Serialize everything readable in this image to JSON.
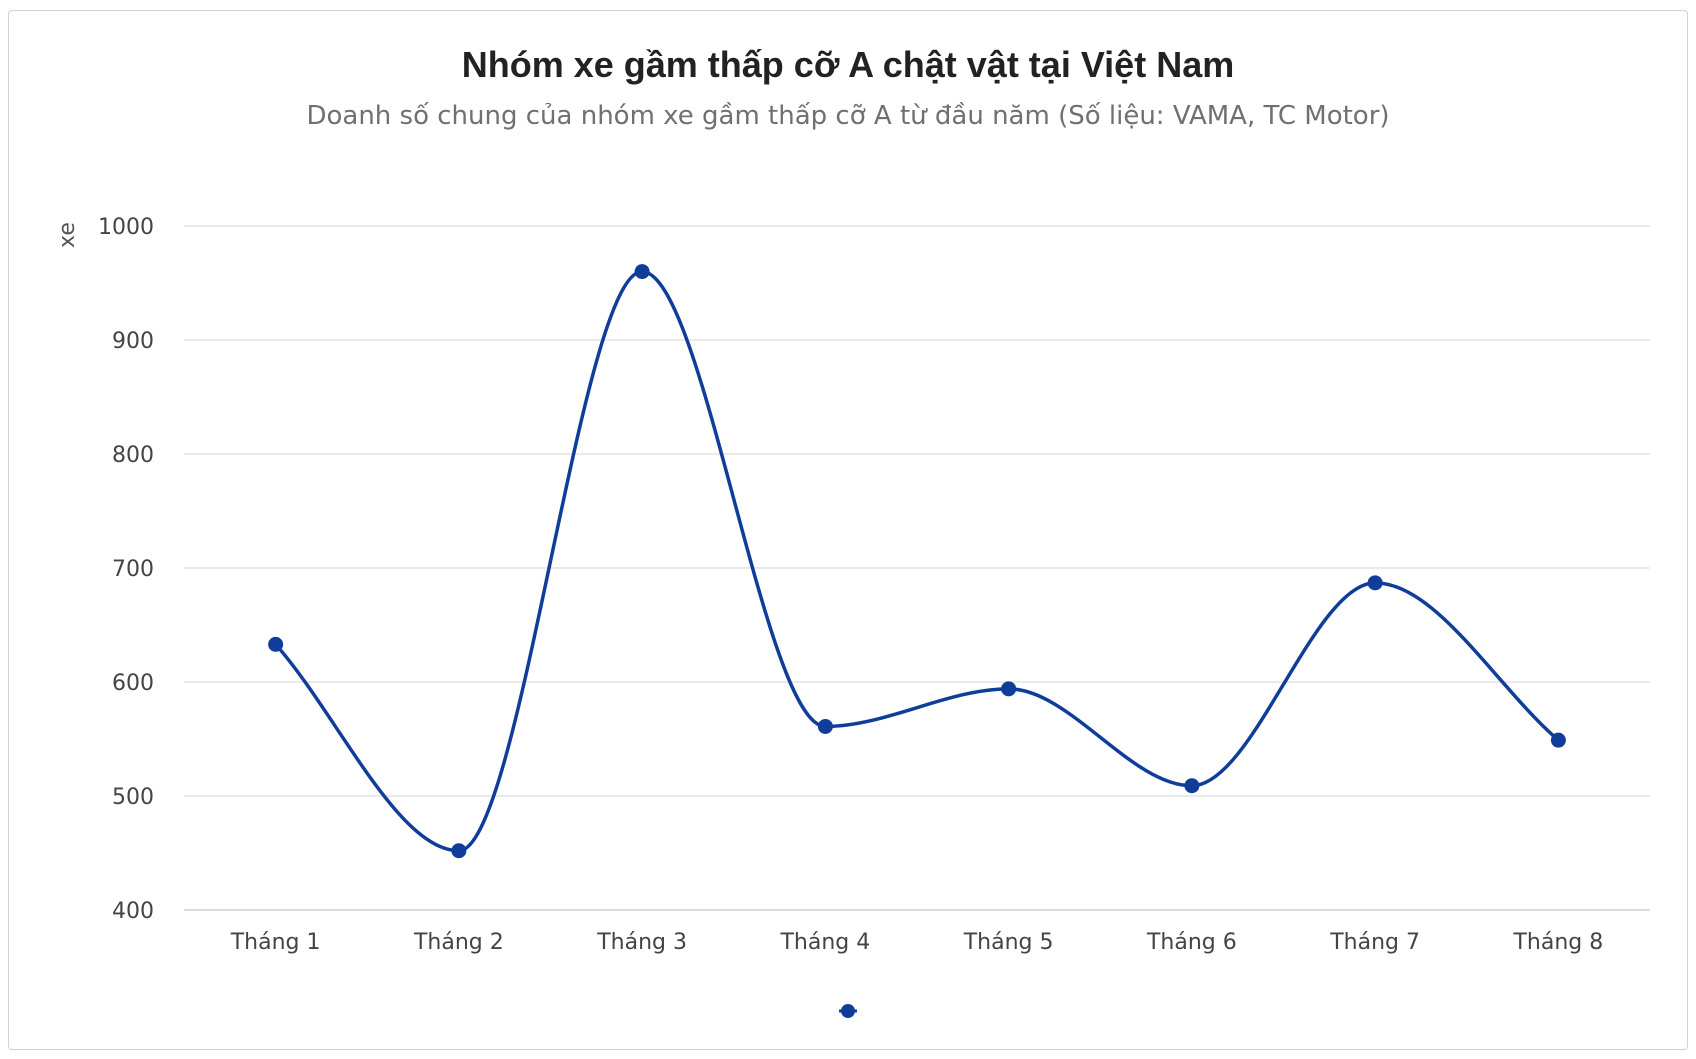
{
  "chart_data": {
    "type": "line",
    "title": "Nhóm xe gầm thấp cỡ A chật vật tại Việt Nam",
    "subtitle": "Doanh số chung của nhóm xe gầm thấp cỡ A từ đầu năm (Số liệu: VAMA, TC Motor)",
    "ylabel": "xe",
    "xlabel": "",
    "categories": [
      "Tháng 1",
      "Tháng 2",
      "Tháng 3",
      "Tháng 4",
      "Tháng 5",
      "Tháng 6",
      "Tháng 7",
      "Tháng 8"
    ],
    "series": [
      {
        "values": [
          633,
          452,
          960,
          561,
          594,
          509,
          687,
          549
        ]
      }
    ],
    "ylim": [
      400,
      1000
    ],
    "yticks": [
      400,
      500,
      600,
      700,
      800,
      900,
      1000
    ],
    "smooth": true,
    "grid": true,
    "legend": "bottom-center",
    "colors": {
      "series": "#0f3d99",
      "grid": "#e3e3e3",
      "axis": "#c8d0dc"
    }
  }
}
